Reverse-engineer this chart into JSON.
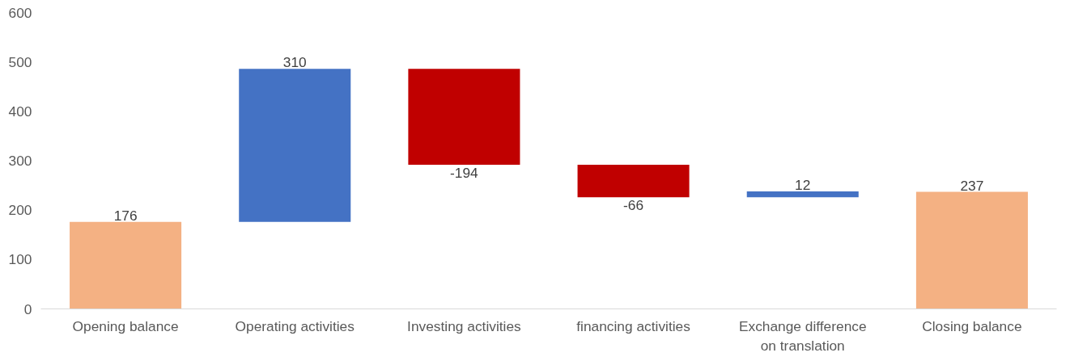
{
  "chart_data": {
    "type": "bar",
    "categories": [
      "Opening balance",
      "Operating activities",
      "Investing activities",
      "financing activities",
      "Exchange difference on translation",
      "Closing balance"
    ],
    "values": [
      176,
      310,
      -194,
      -66,
      12,
      237
    ],
    "base": [
      0,
      176,
      486,
      292,
      226,
      0
    ],
    "colors": [
      "#f4b183",
      "#4472c4",
      "#c00000",
      "#c00000",
      "#4472c4",
      "#f4b183"
    ],
    "ylim": [
      0,
      600
    ],
    "yticks": [
      0,
      100,
      200,
      300,
      400,
      500,
      600
    ],
    "data_labels": true,
    "grid": false
  }
}
